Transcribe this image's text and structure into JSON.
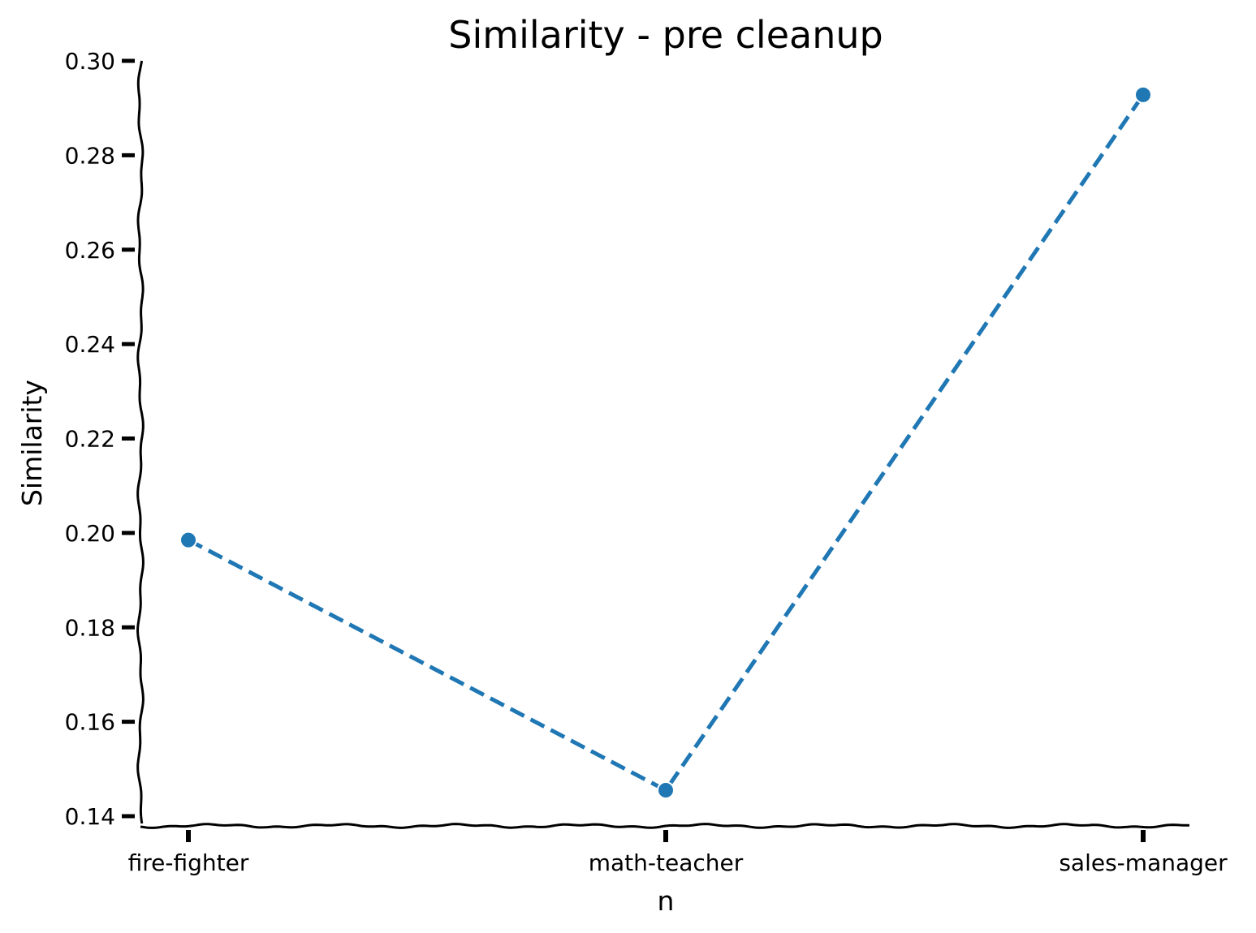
{
  "chart_data": {
    "type": "line",
    "title": "Similarity - pre cleanup",
    "xlabel": "n",
    "ylabel": "Similarity",
    "categories": [
      "fire-fighter",
      "math-teacher",
      "sales-manager"
    ],
    "series": [
      {
        "values": [
          0.1985,
          0.1455,
          0.2928
        ],
        "color": "#1f77b4",
        "line_style": "dashed",
        "marker": "circle"
      }
    ],
    "ylim": [
      0.14,
      0.3
    ],
    "yticks": [
      0.14,
      0.16,
      0.18,
      0.2,
      0.22,
      0.24,
      0.26,
      0.28,
      0.3
    ],
    "ytick_labels": [
      "0.14",
      "0.16",
      "0.18",
      "0.20",
      "0.22",
      "0.24",
      "0.26",
      "0.28",
      "0.30"
    ],
    "grid": false,
    "style": "hand-drawn"
  }
}
